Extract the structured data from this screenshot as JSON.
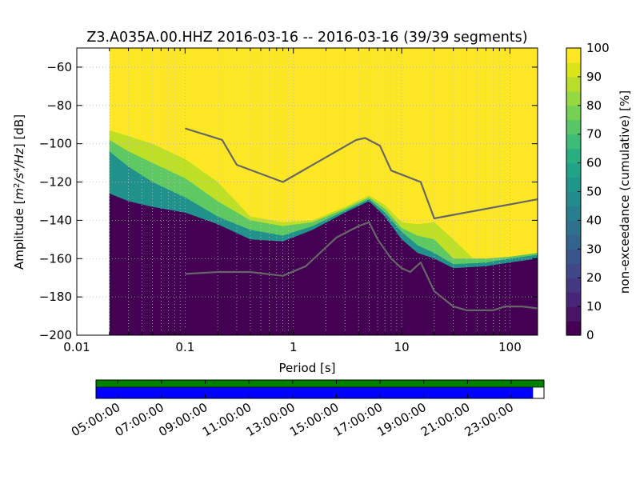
{
  "chart_data": [
    {
      "type": "heatmap",
      "title": "Z3.A035A.00.HHZ   2016-03-16 -- 2016-03-16  (39/39 segments)",
      "xlabel": "Period [s]",
      "ylabel": "Amplitude [m²/s⁴/Hz] [dB]",
      "ylabel_parts": {
        "prefix": "Amplitude [",
        "m": "m",
        "two": "2",
        "s": "/s",
        "four": "4",
        "hz": "/Hz",
        "suffix": "] [dB]"
      },
      "x_scale": "log",
      "xlim": [
        0.01,
        180
      ],
      "ylim": [
        -200,
        -50
      ],
      "x_ticks": [
        {
          "value": 0.01,
          "label": "0.01"
        },
        {
          "value": 0.1,
          "label": "0.1"
        },
        {
          "value": 1,
          "label": "1"
        },
        {
          "value": 10,
          "label": "10"
        },
        {
          "value": 100,
          "label": "100"
        }
      ],
      "y_ticks": [
        {
          "value": -60,
          "label": "−60"
        },
        {
          "value": -80,
          "label": "−80"
        },
        {
          "value": -100,
          "label": "−100"
        },
        {
          "value": -120,
          "label": "−120"
        },
        {
          "value": -140,
          "label": "−140"
        },
        {
          "value": -160,
          "label": "−160"
        },
        {
          "value": -180,
          "label": "−180"
        },
        {
          "value": -200,
          "label": "−200"
        }
      ],
      "grid": true,
      "data_start_period": 0.02,
      "colorbar": {
        "label": "non-exceedance (cumulative) [%]",
        "range": [
          0,
          100
        ],
        "ticks": [
          "0",
          "10",
          "20",
          "30",
          "40",
          "50",
          "60",
          "70",
          "80",
          "90",
          "100"
        ],
        "colormap": "viridis"
      },
      "percentile_bands": [
        {
          "level": 5,
          "color": "#440154",
          "below": [
            [
              0.02,
              -126
            ],
            [
              0.03,
              -130
            ],
            [
              0.05,
              -133
            ],
            [
              0.1,
              -136
            ],
            [
              0.2,
              -142
            ],
            [
              0.4,
              -150
            ],
            [
              0.8,
              -151
            ],
            [
              1.5,
              -145
            ],
            [
              3,
              -136
            ],
            [
              5,
              -130
            ],
            [
              7,
              -138
            ],
            [
              10,
              -150
            ],
            [
              14,
              -157
            ],
            [
              20,
              -160
            ],
            [
              30,
              -165
            ],
            [
              60,
              -164
            ],
            [
              100,
              -162
            ],
            [
              180,
              -160
            ]
          ]
        },
        {
          "level": 55,
          "color": "#21918c",
          "below": [
            [
              0.02,
              -104
            ],
            [
              0.03,
              -112
            ],
            [
              0.05,
              -120
            ],
            [
              0.1,
              -128
            ],
            [
              0.2,
              -138
            ],
            [
              0.4,
              -145
            ],
            [
              0.8,
              -148
            ],
            [
              1.5,
              -143
            ],
            [
              3,
              -135
            ],
            [
              5,
              -129
            ],
            [
              7,
              -136
            ],
            [
              10,
              -146
            ],
            [
              14,
              -153
            ],
            [
              20,
              -157
            ],
            [
              30,
              -163
            ],
            [
              60,
              -162
            ],
            [
              100,
              -160
            ],
            [
              180,
              -158
            ]
          ]
        },
        {
          "level": 80,
          "color": "#5ec962",
          "below": [
            [
              0.02,
              -98
            ],
            [
              0.03,
              -104
            ],
            [
              0.05,
              -110
            ],
            [
              0.1,
              -118
            ],
            [
              0.2,
              -130
            ],
            [
              0.4,
              -140
            ],
            [
              0.8,
              -143
            ],
            [
              1.5,
              -141
            ],
            [
              3,
              -134
            ],
            [
              5,
              -128
            ],
            [
              7,
              -134
            ],
            [
              10,
              -144
            ],
            [
              14,
              -148
            ],
            [
              20,
              -150
            ],
            [
              30,
              -160
            ],
            [
              60,
              -160
            ],
            [
              100,
              -159
            ],
            [
              180,
              -157
            ]
          ]
        },
        {
          "level": 95,
          "color": "#bddf26",
          "below": [
            [
              0.02,
              -93
            ],
            [
              0.03,
              -96
            ],
            [
              0.05,
              -100
            ],
            [
              0.1,
              -108
            ],
            [
              0.2,
              -120
            ],
            [
              0.4,
              -138
            ],
            [
              0.8,
              -141
            ],
            [
              1.5,
              -140
            ],
            [
              3,
              -133
            ],
            [
              5,
              -127
            ],
            [
              7,
              -132
            ],
            [
              10,
              -141
            ],
            [
              14,
              -142
            ],
            [
              20,
              -141
            ],
            [
              30,
              -150
            ],
            [
              50,
              -162
            ],
            [
              100,
              -159
            ],
            [
              180,
              -157
            ]
          ]
        }
      ],
      "above_color": "#fde725",
      "series": [
        {
          "name": "",
          "color": "#666666",
          "points": [
            [
              0.1,
              -92
            ],
            [
              0.22,
              -98
            ],
            [
              0.3,
              -111
            ],
            [
              0.8,
              -120
            ],
            [
              3.8,
              -98
            ],
            [
              4.6,
              -97
            ],
            [
              6.3,
              -101
            ],
            [
              8,
              -114
            ],
            [
              15,
              -120
            ],
            [
              20,
              -139
            ],
            [
              180,
              -129
            ]
          ]
        },
        {
          "name": "",
          "color": "#666666",
          "points": [
            [
              0.1,
              -168
            ],
            [
              0.2,
              -167
            ],
            [
              0.4,
              -167
            ],
            [
              0.8,
              -169
            ],
            [
              1.3,
              -164
            ],
            [
              2.5,
              -149
            ],
            [
              4,
              -143
            ],
            [
              5,
              -141
            ],
            [
              6,
              -150
            ],
            [
              8,
              -160
            ],
            [
              10,
              -165
            ],
            [
              12,
              -167
            ],
            [
              15,
              -162
            ],
            [
              20,
              -177
            ],
            [
              30,
              -185
            ],
            [
              40,
              -187
            ],
            [
              70,
              -187
            ],
            [
              90,
              -185
            ],
            [
              130,
              -185
            ],
            [
              180,
              -186
            ]
          ]
        }
      ]
    },
    {
      "type": "bar",
      "x_ticks": [
        "05:00:00",
        "07:00:00",
        "09:00:00",
        "11:00:00",
        "13:00:00",
        "15:00:00",
        "17:00:00",
        "19:00:00",
        "21:00:00",
        "23:00:00"
      ],
      "time_range_hours": [
        4.0,
        24.5
      ],
      "segments": [
        {
          "color": "#008000",
          "start_hours": 4.0,
          "end_hours": 24.5
        },
        {
          "color": "#0000ff",
          "start_hours": 4.0,
          "end_hours": 24.0
        }
      ]
    }
  ]
}
